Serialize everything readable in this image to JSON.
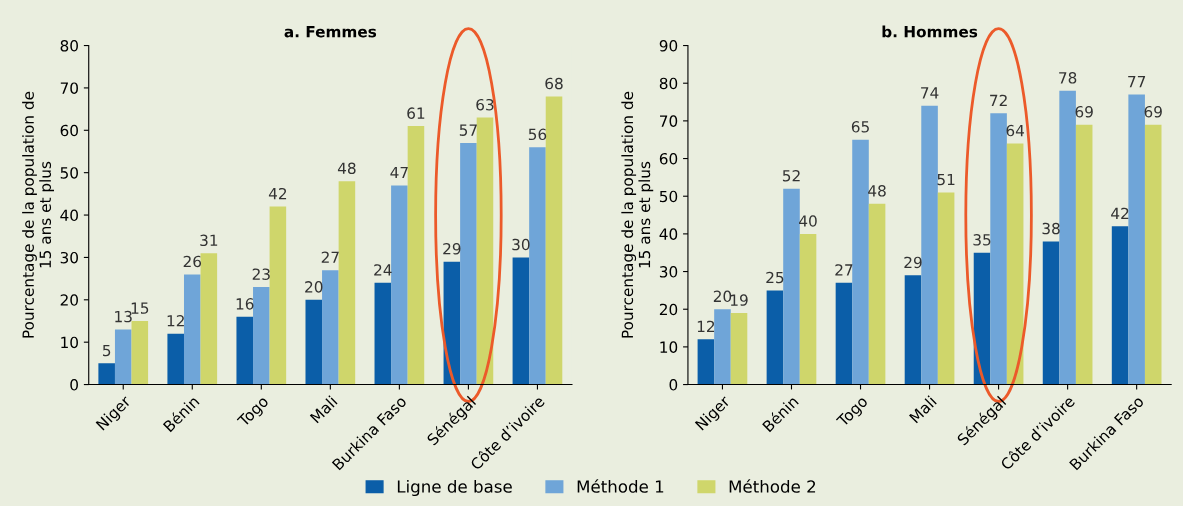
{
  "chart_data": [
    {
      "type": "bar",
      "title": "a. Femmes",
      "ylabel": "Pourcentage de la population de\n15 ans et plus",
      "categories": [
        "Niger",
        "Bénin",
        "Togo",
        "Mali",
        "Burkina Faso",
        "Sénégal",
        "Côte d’ivoire"
      ],
      "series": [
        {
          "name": "Ligne de base",
          "color": "#0b5ea8",
          "values": [
            5,
            12,
            16,
            20,
            24,
            29,
            30
          ]
        },
        {
          "name": "Méthode 1",
          "color": "#6fa5d8",
          "values": [
            13,
            26,
            23,
            27,
            47,
            57,
            56
          ]
        },
        {
          "name": "Méthode 2",
          "color": "#cfd66b",
          "values": [
            15,
            31,
            42,
            48,
            61,
            63,
            68
          ]
        }
      ],
      "ylim": [
        0,
        80
      ],
      "yticks": [
        0,
        10,
        20,
        30,
        40,
        50,
        60,
        70,
        80
      ],
      "data_labels": true,
      "legend": "bottom"
    },
    {
      "type": "bar",
      "title": "b. Hommes",
      "ylabel": "Pourcentage de la population de\n15 ans et plus",
      "categories": [
        "Niger",
        "Bénin",
        "Togo",
        "Mali",
        "Sénégal",
        "Côte d’ivoire",
        "Burkina Faso"
      ],
      "series": [
        {
          "name": "Ligne de base",
          "color": "#0b5ea8",
          "values": [
            12,
            25,
            27,
            29,
            35,
            38,
            42
          ]
        },
        {
          "name": "Méthode 1",
          "color": "#6fa5d8",
          "values": [
            20,
            52,
            65,
            74,
            72,
            78,
            77
          ]
        },
        {
          "name": "Méthode 2",
          "color": "#cfd66b",
          "values": [
            19,
            40,
            48,
            51,
            64,
            69,
            69
          ]
        }
      ],
      "ylim": [
        0,
        90
      ],
      "yticks": [
        0,
        10,
        20,
        30,
        40,
        50,
        60,
        70,
        80,
        90
      ],
      "data_labels": true,
      "legend": "bottom"
    }
  ]
}
